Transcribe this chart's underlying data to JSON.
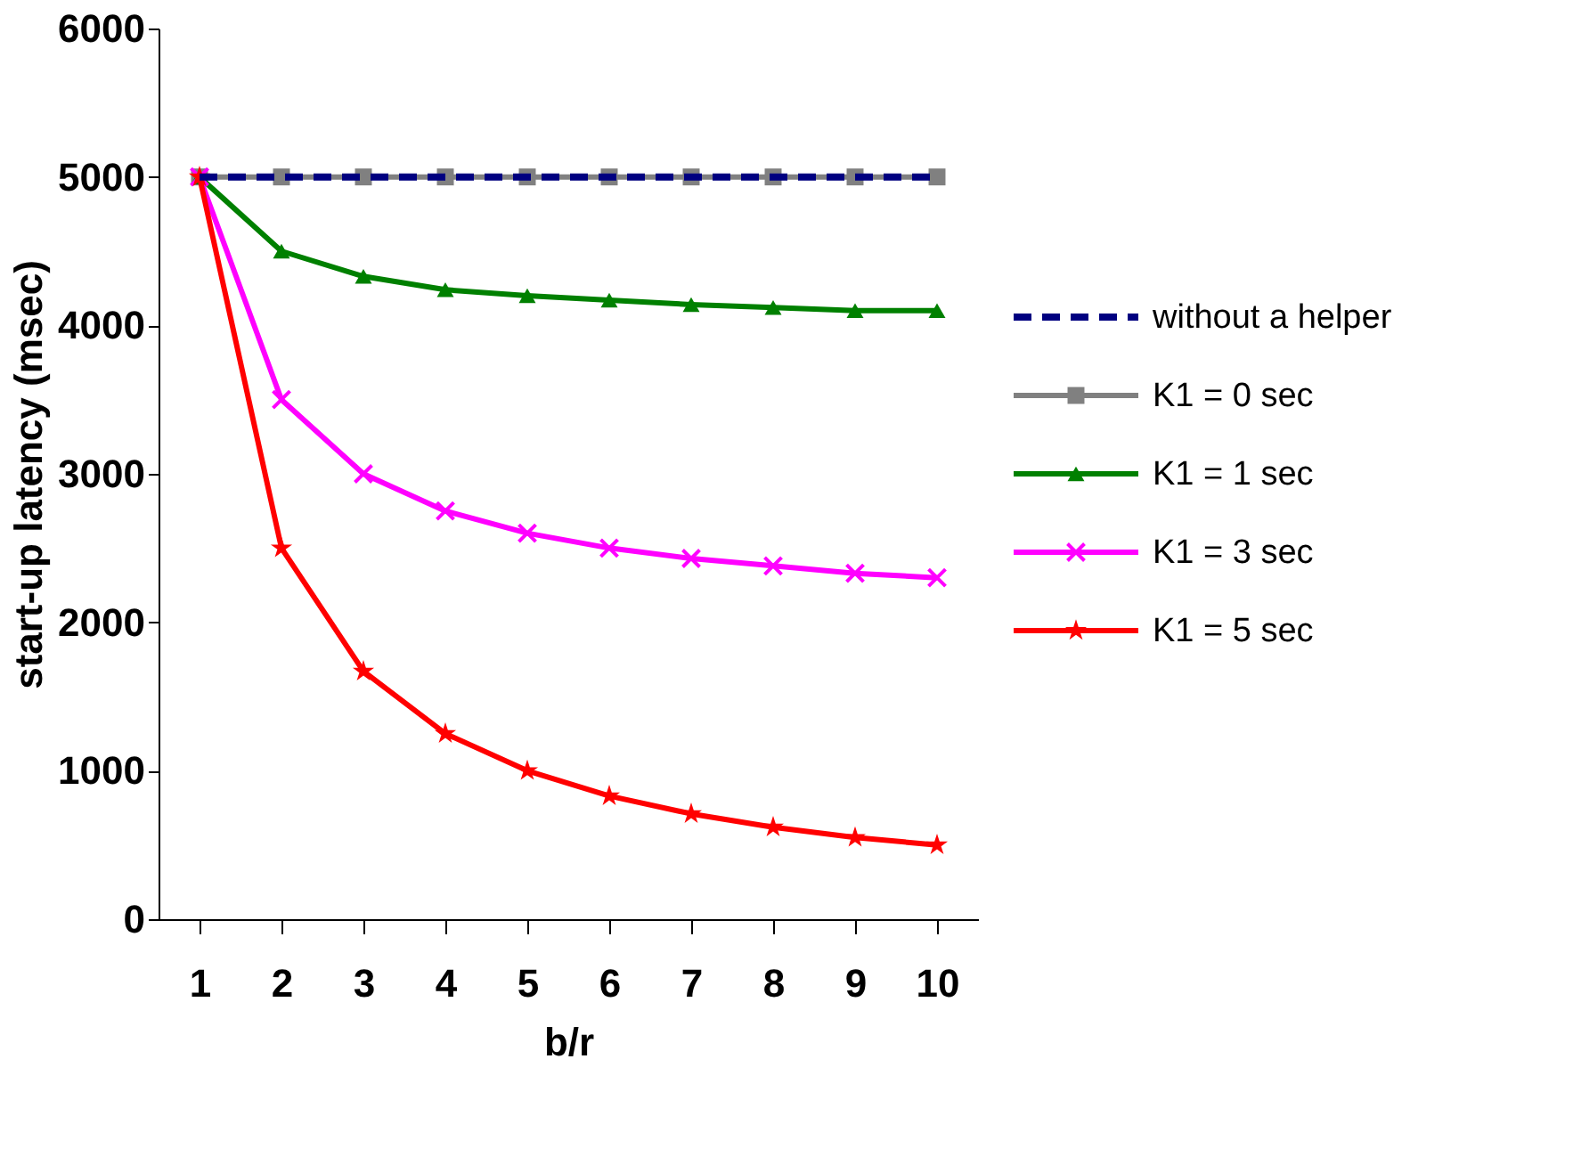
{
  "chart_data": {
    "type": "line",
    "xlabel": "b/r",
    "ylabel": "start-up latency (msec)",
    "categories": [
      "1",
      "2",
      "3",
      "4",
      "5",
      "6",
      "7",
      "8",
      "9",
      "10"
    ],
    "ylim": [
      0,
      6000
    ],
    "yticks": [
      0,
      1000,
      2000,
      3000,
      4000,
      5000,
      6000
    ],
    "grid": false,
    "legend": "right",
    "series": [
      {
        "name": "without a helper",
        "color": "#000080",
        "line_style": "dashed",
        "marker": "none",
        "values": [
          5000,
          5000,
          5000,
          5000,
          5000,
          5000,
          5000,
          5000,
          5000,
          5000
        ]
      },
      {
        "name": "K1 = 0 sec",
        "color": "#808080",
        "line_style": "solid",
        "marker": "square",
        "values": [
          5000,
          5000,
          5000,
          5000,
          5000,
          5000,
          5000,
          5000,
          5000,
          5000
        ]
      },
      {
        "name": "K1 = 1 sec",
        "color": "#008000",
        "line_style": "solid",
        "marker": "triangle",
        "values": [
          5000,
          4500,
          4330,
          4240,
          4200,
          4170,
          4140,
          4120,
          4100,
          4100
        ]
      },
      {
        "name": "K1 = 3 sec",
        "color": "#ff00ff",
        "line_style": "solid",
        "marker": "cross",
        "values": [
          5000,
          3500,
          3000,
          2750,
          2600,
          2500,
          2430,
          2380,
          2330,
          2300
        ]
      },
      {
        "name": "K1 = 5 sec",
        "color": "#ff0000",
        "line_style": "solid",
        "marker": "star",
        "values": [
          5000,
          2500,
          1670,
          1250,
          1000,
          830,
          710,
          620,
          550,
          500
        ]
      }
    ]
  }
}
